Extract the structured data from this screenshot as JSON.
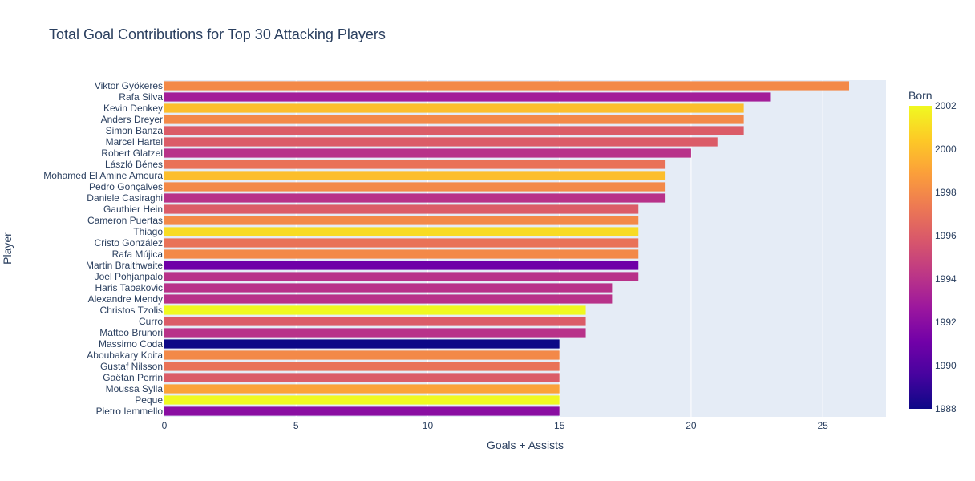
{
  "chart_data": {
    "type": "bar",
    "orientation": "horizontal",
    "title": "Total Goal Contributions for Top 30 Attacking Players",
    "xlabel": "Goals + Assists",
    "ylabel": "Player",
    "xlim": [
      0,
      27.4
    ],
    "xticks": [
      0,
      5,
      10,
      15,
      20,
      25
    ],
    "grid": true,
    "colorbar": {
      "title": "Born",
      "range": [
        1988,
        2002
      ],
      "ticks": [
        1988,
        1990,
        1992,
        1994,
        1996,
        1998,
        2000,
        2002
      ],
      "colorscale": [
        "#0d0887",
        "#46039f",
        "#7201a8",
        "#9c179e",
        "#bd3786",
        "#d8576b",
        "#ed7953",
        "#fb9f3a",
        "#fdca26",
        "#f0f921"
      ]
    },
    "players": [
      {
        "name": "Viktor Gyökeres",
        "value": 26,
        "born": 1998
      },
      {
        "name": "Rafa Silva",
        "value": 23,
        "born": 1993
      },
      {
        "name": "Kevin Denkey",
        "value": 22,
        "born": 2000
      },
      {
        "name": "Anders Dreyer",
        "value": 22,
        "born": 1998
      },
      {
        "name": "Simon Banza",
        "value": 22,
        "born": 1996
      },
      {
        "name": "Marcel Hartel",
        "value": 21,
        "born": 1996
      },
      {
        "name": "Robert Glatzel",
        "value": 20,
        "born": 1994
      },
      {
        "name": "László Bénes",
        "value": 19,
        "born": 1997
      },
      {
        "name": "Mohamed El Amine Amoura",
        "value": 19,
        "born": 2000
      },
      {
        "name": "Pedro Gonçalves",
        "value": 19,
        "born": 1998
      },
      {
        "name": "Daniele Casiraghi",
        "value": 19,
        "born": 1994
      },
      {
        "name": "Gauthier Hein",
        "value": 18,
        "born": 1996
      },
      {
        "name": "Cameron Puertas",
        "value": 18,
        "born": 1998
      },
      {
        "name": "Thiago",
        "value": 18,
        "born": 2001
      },
      {
        "name": "Cristo González",
        "value": 18,
        "born": 1997
      },
      {
        "name": "Rafa Mújica",
        "value": 18,
        "born": 1998
      },
      {
        "name": "Martin Braithwaite",
        "value": 18,
        "born": 1991
      },
      {
        "name": "Joel Pohjanpalo",
        "value": 18,
        "born": 1994
      },
      {
        "name": "Haris Tabakovic",
        "value": 17,
        "born": 1994
      },
      {
        "name": "Alexandre Mendy",
        "value": 17,
        "born": 1994
      },
      {
        "name": "Christos Tzolis",
        "value": 16,
        "born": 2002
      },
      {
        "name": "Curro",
        "value": 16,
        "born": 1996
      },
      {
        "name": "Matteo Brunori",
        "value": 16,
        "born": 1994
      },
      {
        "name": "Massimo Coda",
        "value": 15,
        "born": 1988
      },
      {
        "name": "Aboubakary Koita",
        "value": 15,
        "born": 1998
      },
      {
        "name": "Gustaf Nilsson",
        "value": 15,
        "born": 1997
      },
      {
        "name": "Gaëtan Perrin",
        "value": 15,
        "born": 1996
      },
      {
        "name": "Moussa Sylla",
        "value": 15,
        "born": 1999
      },
      {
        "name": "Peque",
        "value": 15,
        "born": 2002
      },
      {
        "name": "Pietro Iemmello",
        "value": 15,
        "born": 1992
      }
    ]
  }
}
